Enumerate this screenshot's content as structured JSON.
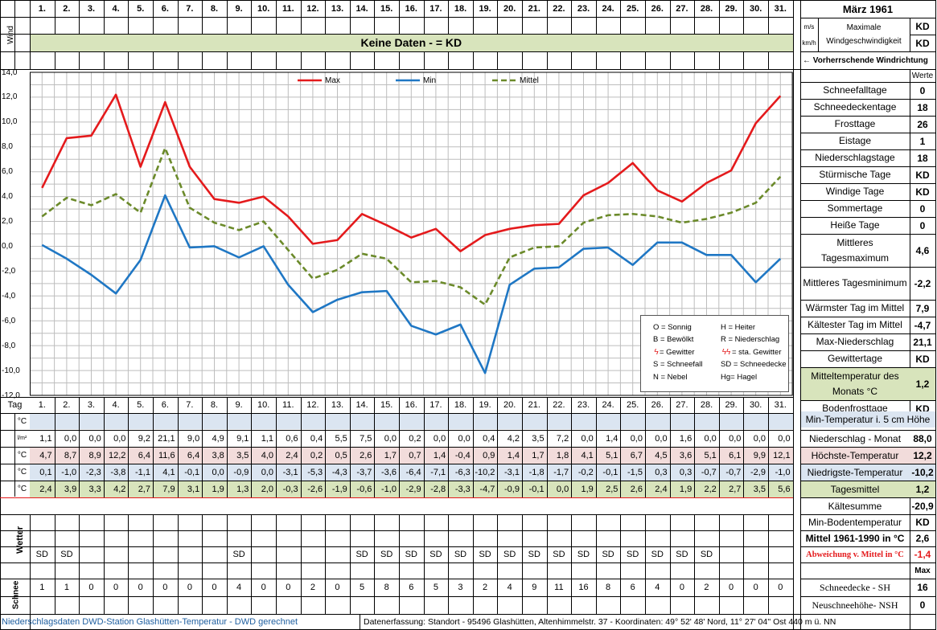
{
  "days": [
    "1.",
    "2.",
    "3.",
    "4.",
    "5.",
    "6.",
    "7.",
    "8.",
    "9.",
    "10.",
    "11.",
    "12.",
    "13.",
    "14.",
    "15.",
    "16.",
    "17.",
    "18.",
    "19.",
    "20.",
    "21.",
    "22.",
    "23.",
    "24.",
    "25.",
    "26.",
    "27.",
    "28.",
    "29.",
    "30.",
    "31."
  ],
  "header": {
    "title": "März 1961",
    "wind_label": "Wind",
    "unit_ms": "m/s",
    "unit_kmh": "km/h",
    "max_wind_label": "Maximale Windgeschwindigkeit",
    "max_wind_value_1": "KD",
    "max_wind_value_2": "KD",
    "no_data": "Keine Daten -  = KD",
    "prevailing_wind": "←  Vorherrschende Windrichtung",
    "werte": "Werte"
  },
  "stats": [
    {
      "label": "Schneefalltage",
      "value": "0"
    },
    {
      "label": "Schneedeckentage",
      "value": "18"
    },
    {
      "label": "Frosttage",
      "value": "26"
    },
    {
      "label": "Eistage",
      "value": "1"
    },
    {
      "label": "Niederschlagstage",
      "value": "18"
    },
    {
      "label": "Stürmische Tage",
      "value": "KD"
    },
    {
      "label": "Windige Tage",
      "value": "KD"
    },
    {
      "label": "Sommertage",
      "value": "0"
    },
    {
      "label": "Heiße Tage",
      "value": "0"
    },
    {
      "label": "Mittleres Tagesmaximum",
      "value": "4,6"
    },
    {
      "label": "Mittleres Tagesminimum",
      "value": "-2,2"
    },
    {
      "label": "Wärmster Tag im Mittel",
      "value": "7,9"
    },
    {
      "label": "Kältester Tag im Mittel",
      "value": "-4,7"
    },
    {
      "label": "Max-Niederschlag",
      "value": "21,1"
    },
    {
      "label": "Gewittertage",
      "value": "KD"
    },
    {
      "label": "Mitteltemperatur des Monats °C",
      "value": "1,2"
    },
    {
      "label": "Bodenfrosttage",
      "value": "KD"
    }
  ],
  "legend_box": {
    "items": [
      "O = Sonnig",
      "H = Heiter",
      "B = Bewölkt",
      "R = Niederschlag",
      "= Gewitter",
      "= sta. Gewitter",
      "S = Schneefall",
      "SD = Schneedecke",
      "N = Nebel",
      "Hg= Hagel"
    ],
    "gewitter_symbol_1": "ϟ",
    "gewitter_symbol_2": "ϟϟ"
  },
  "table": {
    "tag_label": "Tag",
    "deg_label": "°C",
    "precip_unit": "l/m²",
    "min5cm_label": "Min-Temperatur i. 5 cm Höhe",
    "rows": [
      {
        "unit": "l/m²",
        "label": "Niederschlag - Monat",
        "total": "88,0",
        "values": [
          "1,1",
          "0,0",
          "0,0",
          "0,0",
          "9,2",
          "21,1",
          "9,0",
          "4,9",
          "9,1",
          "1,1",
          "0,6",
          "0,4",
          "5,5",
          "7,5",
          "0,0",
          "0,2",
          "0,0",
          "0,0",
          "0,4",
          "4,2",
          "3,5",
          "7,2",
          "0,0",
          "1,4",
          "0,0",
          "0,0",
          "1,6",
          "0,0",
          "0,0",
          "0,0",
          "0,0"
        ]
      },
      {
        "unit": "°C",
        "label": "Höchste-Temperatur",
        "total": "12,2",
        "values": [
          "4,7",
          "8,7",
          "8,9",
          "12,2",
          "6,4",
          "11,6",
          "6,4",
          "3,8",
          "3,5",
          "4,0",
          "2,4",
          "0,2",
          "0,5",
          "2,6",
          "1,7",
          "0,7",
          "1,4",
          "-0,4",
          "0,9",
          "1,4",
          "1,7",
          "1,8",
          "4,1",
          "5,1",
          "6,7",
          "4,5",
          "3,6",
          "5,1",
          "6,1",
          "9,9",
          "12,1"
        ]
      },
      {
        "unit": "°C",
        "label": "Niedrigste-Temperatur",
        "total": "-10,2",
        "values": [
          "0,1",
          "-1,0",
          "-2,3",
          "-3,8",
          "-1,1",
          "4,1",
          "-0,1",
          "0,0",
          "-0,9",
          "0,0",
          "-3,1",
          "-5,3",
          "-4,3",
          "-3,7",
          "-3,6",
          "-6,4",
          "-7,1",
          "-6,3",
          "-10,2",
          "-3,1",
          "-1,8",
          "-1,7",
          "-0,2",
          "-0,1",
          "-1,5",
          "0,3",
          "0,3",
          "-0,7",
          "-0,7",
          "-2,9",
          "-1,0"
        ]
      },
      {
        "unit": "°C",
        "label": "Tagesmittel",
        "total": "1,2",
        "values": [
          "2,4",
          "3,9",
          "3,3",
          "4,2",
          "2,7",
          "7,9",
          "3,1",
          "1,9",
          "1,3",
          "2,0",
          "-0,3",
          "-2,6",
          "-1,9",
          "-0,6",
          "-1,0",
          "-2,9",
          "-2,8",
          "-3,3",
          "-4,7",
          "-0,9",
          "-0,1",
          "0,0",
          "1,9",
          "2,5",
          "2,6",
          "2,4",
          "1,9",
          "2,2",
          "2,7",
          "3,5",
          "5,6"
        ]
      }
    ],
    "kaeltesumme_label": "Kältesumme",
    "kaeltesumme_value": "-20,9",
    "minboden_label": "Min-Bodentemperatur",
    "minboden_value": "KD",
    "mittel_label": "Mittel 1961-1990 in °C",
    "mittel_value": "2,6",
    "abweichung_label": "Abweichung v. Mittel in °C",
    "abweichung_value": "-1,4",
    "wetter_label": "Wetter",
    "wetter_values": [
      "SD",
      "SD",
      "",
      "",
      "",
      "",
      "",
      "",
      "SD",
      "",
      "",
      "",
      "",
      "SD",
      "SD",
      "SD",
      "SD",
      "SD",
      "SD",
      "SD",
      "SD",
      "SD",
      "SD",
      "SD",
      "SD",
      "SD",
      "SD",
      "SD",
      "",
      "",
      ""
    ],
    "max_label": "Max",
    "schnee_label": "Schnee",
    "schnee_values": [
      "1",
      "1",
      "0",
      "0",
      "0",
      "0",
      "0",
      "0",
      "4",
      "0",
      "0",
      "2",
      "0",
      "5",
      "8",
      "6",
      "5",
      "3",
      "2",
      "4",
      "9",
      "11",
      "16",
      "8",
      "6",
      "4",
      "0",
      "2",
      "0",
      "0",
      "0"
    ],
    "schneedecke_label": "Schneedecke -  SH",
    "schneedecke_value": "16",
    "neuschnee_label": "Neuschneehöhe- NSH",
    "neuschnee_value": "0"
  },
  "footer": {
    "left": "Niederschlagsdaten DWD-Station Glashütten-Temperatur -  DWD gerechnet",
    "right": "Datenerfassung:  Standort -  95496  Glashütten, Altenhimmelstr. 37 - Koordinaten:  49° 52' 48' Nord,   11° 27' 04'' Ost   440 m ü. NN"
  },
  "chart_data": {
    "type": "line",
    "x": [
      1,
      2,
      3,
      4,
      5,
      6,
      7,
      8,
      9,
      10,
      11,
      12,
      13,
      14,
      15,
      16,
      17,
      18,
      19,
      20,
      21,
      22,
      23,
      24,
      25,
      26,
      27,
      28,
      29,
      30,
      31
    ],
    "ylim": [
      -12,
      14
    ],
    "yticks": [
      "14,0",
      "12,0",
      "10,0",
      "8,0",
      "6,0",
      "4,0",
      "2,0",
      "0,0",
      "-2,0",
      "-4,0",
      "-6,0",
      "-8,0",
      "-10,0",
      "-12,0"
    ],
    "legend_placement": "top",
    "grid": true,
    "series": [
      {
        "name": "Max",
        "color": "#e41a1c",
        "style": "solid",
        "values": [
          4.7,
          8.7,
          8.9,
          12.2,
          6.4,
          11.6,
          6.4,
          3.8,
          3.5,
          4.0,
          2.4,
          0.2,
          0.5,
          2.6,
          1.7,
          0.7,
          1.4,
          -0.4,
          0.9,
          1.4,
          1.7,
          1.8,
          4.1,
          5.1,
          6.7,
          4.5,
          3.6,
          5.1,
          6.1,
          9.9,
          12.1
        ]
      },
      {
        "name": "Min",
        "color": "#1f77c4",
        "style": "solid",
        "values": [
          0.1,
          -1.0,
          -2.3,
          -3.8,
          -1.1,
          4.1,
          -0.1,
          0.0,
          -0.9,
          0.0,
          -3.1,
          -5.3,
          -4.3,
          -3.7,
          -3.6,
          -6.4,
          -7.1,
          -6.3,
          -10.2,
          -3.1,
          -1.8,
          -1.7,
          -0.2,
          -0.1,
          -1.5,
          0.3,
          0.3,
          -0.7,
          -0.7,
          -2.9,
          -1.0
        ]
      },
      {
        "name": "Mittel",
        "color": "#6b8a2a",
        "style": "dashed",
        "values": [
          2.4,
          3.9,
          3.3,
          4.2,
          2.7,
          7.9,
          3.1,
          1.9,
          1.3,
          2.0,
          -0.3,
          -2.6,
          -1.9,
          -0.6,
          -1.0,
          -2.9,
          -2.8,
          -3.3,
          -4.7,
          -0.9,
          -0.1,
          0.0,
          1.9,
          2.5,
          2.6,
          2.4,
          1.9,
          2.2,
          2.7,
          3.5,
          5.6
        ]
      }
    ]
  }
}
